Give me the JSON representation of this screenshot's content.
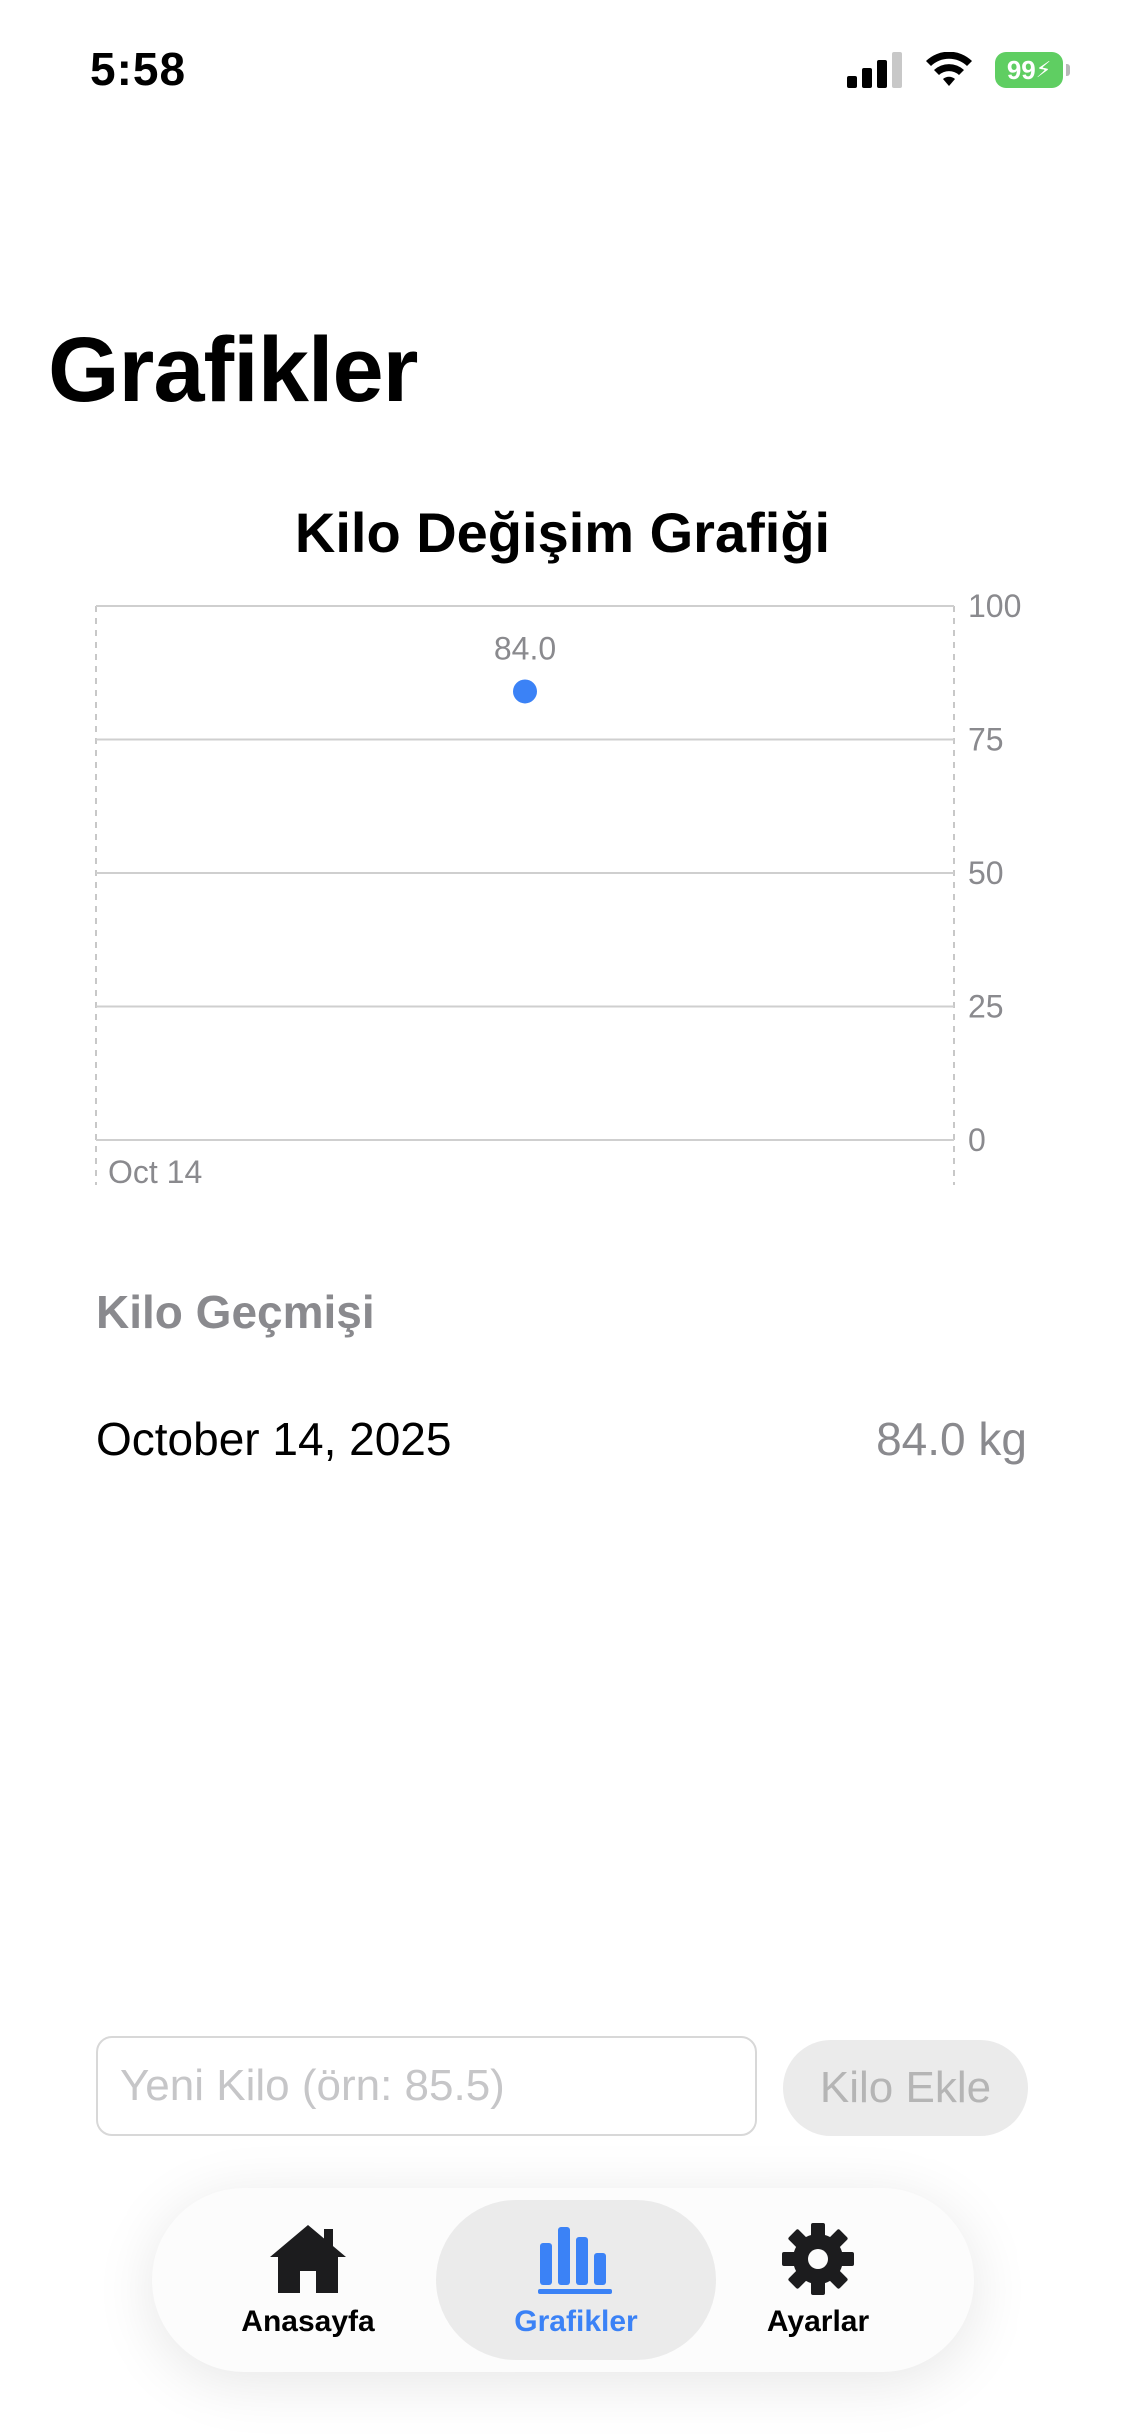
{
  "status_bar": {
    "time": "5:58",
    "battery": "99"
  },
  "page_title": "Grafikler",
  "chart_data": {
    "type": "scatter",
    "title": "Kilo Değişim Grafiği",
    "x": [
      "Oct 14"
    ],
    "series": [
      {
        "values": [
          84.0
        ],
        "data_labels": [
          "84.0"
        ]
      }
    ],
    "y_ticks": [
      "100",
      "75",
      "50",
      "25",
      "0"
    ],
    "ylim": [
      0,
      100
    ],
    "grid": true,
    "y_axis_position": "right",
    "point_color": "#3b82f6"
  },
  "history": {
    "heading": "Kilo Geçmişi",
    "entries": [
      {
        "date": "October 14, 2025",
        "value": "84.0 kg"
      }
    ]
  },
  "input": {
    "placeholder": "Yeni Kilo (örn: 85.5)",
    "value": ""
  },
  "add_button": {
    "label": "Kilo Ekle"
  },
  "tabs": [
    {
      "label": "Anasayfa",
      "icon": "house-icon",
      "selected": false
    },
    {
      "label": "Grafikler",
      "icon": "chart-bar-icon",
      "selected": true
    },
    {
      "label": "Ayarlar",
      "icon": "gear-icon",
      "selected": false
    }
  ],
  "colors": {
    "accent": "#3b82f6",
    "secondary_text": "#8a8a8e"
  }
}
